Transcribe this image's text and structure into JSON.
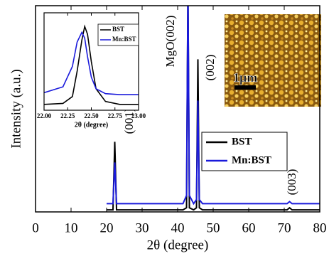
{
  "chart_data": [
    {
      "type": "line",
      "xlabel": "2θ (degree)",
      "ylabel": "Intensity (a.u.)",
      "x": [
        20,
        21.8,
        22.3,
        22.8,
        25,
        41.5,
        42.5,
        42.9,
        43.3,
        44.5,
        45.3,
        45.7,
        46.1,
        47,
        70.8,
        71.5,
        72.2,
        80
      ],
      "series": [
        {
          "name": "BST",
          "color": "#000000",
          "values": [
            1,
            1,
            34,
            1,
            1,
            1,
            2,
            110,
            2,
            1,
            2,
            74,
            2,
            1,
            1,
            2,
            1,
            1
          ]
        },
        {
          "name": "Mn:BST",
          "color": "#1a1adb",
          "values": [
            4,
            4,
            24,
            4,
            4,
            4,
            8,
            110,
            8,
            4,
            6,
            54,
            6,
            4,
            4,
            5,
            4,
            4
          ]
        }
      ],
      "xlim": [
        0,
        80
      ],
      "ylim": [
        0,
        100
      ],
      "xticks": [
        0,
        10,
        20,
        30,
        40,
        50,
        60,
        70,
        80
      ],
      "legend": "right",
      "annotations": [
        "(001)",
        "MgO(002)",
        "(002)",
        "(003)"
      ],
      "scale_bar_label": "1μm"
    },
    {
      "type": "line",
      "xlabel": "2θ (degree)",
      "x": [
        22.0,
        22.2,
        22.3,
        22.35,
        22.4,
        22.43,
        22.46,
        22.5,
        22.55,
        22.65,
        22.8,
        23.0
      ],
      "series": [
        {
          "name": "BST",
          "color": "#000000",
          "values": [
            6,
            7,
            14,
            40,
            72,
            86,
            78,
            50,
            22,
            9,
            6,
            6
          ]
        },
        {
          "name": "Mn:BST",
          "color": "#1a1adb",
          "values": [
            18,
            24,
            45,
            70,
            80,
            74,
            55,
            34,
            22,
            17,
            16,
            16
          ]
        }
      ],
      "xlim": [
        22.0,
        23.0
      ],
      "ylim": [
        0,
        100
      ],
      "xticks": [
        {
          "value": 22.0,
          "label": "22.00"
        },
        {
          "value": 22.25,
          "label": "22.25"
        },
        {
          "value": 22.5,
          "label": "22.50"
        },
        {
          "value": 22.75,
          "label": "22.75"
        },
        {
          "value": 23.0,
          "label": "23.00"
        }
      ],
      "legend": "upper right"
    }
  ]
}
